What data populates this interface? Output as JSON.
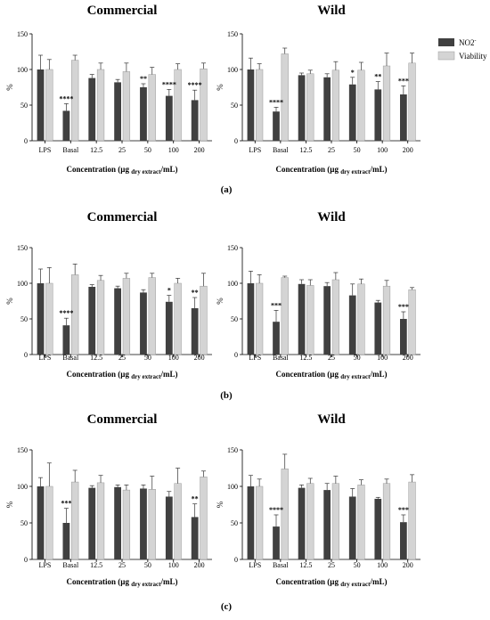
{
  "legend": {
    "items": [
      {
        "label": "NO2",
        "sup": "-",
        "color": "#404040"
      },
      {
        "label": "Viability",
        "color": "#d4d4d4"
      }
    ]
  },
  "panel_labels": [
    "(a)",
    "(b)",
    "(c)"
  ],
  "chart_data": [
    {
      "type": "bar",
      "panel": "(a)",
      "title": "Commercial",
      "ylabel": "%",
      "xlabel_main": "Concentration (µg ",
      "xlabel_sub": "dry extract",
      "xlabel_end": "/mL)",
      "ylim": [
        0,
        150
      ],
      "yticks": [
        "0",
        "50",
        "100",
        "150"
      ],
      "categories": [
        "LPS",
        "Basal",
        "12.5",
        "25",
        "50",
        "100",
        "200"
      ],
      "series": [
        {
          "name": "NO2-",
          "values": [
            100,
            42,
            88,
            82,
            75,
            63,
            57
          ],
          "errors": [
            20,
            10,
            5,
            4,
            5,
            9,
            14
          ]
        },
        {
          "name": "Viability",
          "values": [
            100,
            113,
            100,
            97,
            93,
            100,
            101
          ],
          "errors": [
            14,
            7,
            9,
            12,
            10,
            8,
            8
          ]
        }
      ],
      "annotations": [
        "",
        "****",
        "",
        "",
        "**",
        "****",
        "****"
      ]
    },
    {
      "type": "bar",
      "panel": "(a)",
      "title": "Wild",
      "ylabel": "%",
      "xlabel_main": "Concentration (µg ",
      "xlabel_sub": "dry extract",
      "xlabel_end": "/mL)",
      "ylim": [
        0,
        150
      ],
      "yticks": [
        "0",
        "50",
        "100",
        "150"
      ],
      "categories": [
        "LPS",
        "Basal",
        "12.5",
        "25",
        "50",
        "100",
        "200"
      ],
      "series": [
        {
          "name": "NO2-",
          "values": [
            100,
            41,
            92,
            89,
            79,
            72,
            65
          ],
          "errors": [
            16,
            6,
            3,
            5,
            10,
            11,
            12
          ]
        },
        {
          "name": "Viability",
          "values": [
            100,
            122,
            94,
            99,
            99,
            105,
            109
          ],
          "errors": [
            8,
            8,
            5,
            12,
            11,
            18,
            14
          ]
        }
      ],
      "annotations": [
        "",
        "****",
        "",
        "",
        "*",
        "**",
        "***"
      ]
    },
    {
      "type": "bar",
      "panel": "(b)",
      "title": "Commercial",
      "ylabel": "%",
      "xlabel_main": "Concentration (µg ",
      "xlabel_sub": "dry extract",
      "xlabel_end": "/mL)",
      "ylim": [
        0,
        150
      ],
      "yticks": [
        "0",
        "50",
        "100",
        "150"
      ],
      "categories": [
        "LPS",
        "Basal",
        "12.5",
        "25",
        "50",
        "100",
        "200"
      ],
      "series": [
        {
          "name": "NO2-",
          "values": [
            100,
            41,
            95,
            93,
            87,
            74,
            65
          ],
          "errors": [
            20,
            10,
            3,
            3,
            4,
            9,
            15
          ]
        },
        {
          "name": "Viability",
          "values": [
            100,
            112,
            104,
            107,
            108,
            100,
            96
          ],
          "errors": [
            22,
            15,
            7,
            7,
            6,
            7,
            18
          ]
        }
      ],
      "annotations": [
        "",
        "****",
        "",
        "",
        "",
        "*",
        "**"
      ]
    },
    {
      "type": "bar",
      "panel": "(b)",
      "title": "Wild",
      "ylabel": "%",
      "xlabel_main": "Concentration (µg ",
      "xlabel_sub": "dry extract",
      "xlabel_end": "/mL)",
      "ylim": [
        0,
        150
      ],
      "yticks": [
        "0",
        "50",
        "100",
        "150"
      ],
      "categories": [
        "LPS",
        "Basal",
        "12.5",
        "25",
        "50",
        "100",
        "200"
      ],
      "series": [
        {
          "name": "NO2-",
          "values": [
            100,
            46,
            99,
            96,
            83,
            73,
            50
          ],
          "errors": [
            17,
            16,
            6,
            5,
            16,
            3,
            10
          ]
        },
        {
          "name": "Viability",
          "values": [
            100,
            108,
            97,
            105,
            99,
            96,
            91
          ],
          "errors": [
            12,
            2,
            8,
            10,
            7,
            8,
            3
          ]
        }
      ],
      "annotations": [
        "",
        "***",
        "",
        "",
        "",
        "",
        "***"
      ]
    },
    {
      "type": "bar",
      "panel": "(c)",
      "title": "Commercial",
      "ylabel": "%",
      "xlabel_main": "Concentration (µg ",
      "xlabel_sub": "dry extract",
      "xlabel_end": "/mL)",
      "ylim": [
        0,
        150
      ],
      "yticks": [
        "0",
        "50",
        "100",
        "150"
      ],
      "categories": [
        "LPS",
        "Basal",
        "12.5",
        "25",
        "50",
        "100",
        "200"
      ],
      "series": [
        {
          "name": "NO2-",
          "values": [
            100,
            50,
            98,
            99,
            97,
            86,
            58
          ],
          "errors": [
            12,
            20,
            3,
            3,
            5,
            7,
            18
          ]
        },
        {
          "name": "Viability",
          "values": [
            100,
            106,
            105,
            95,
            96,
            104,
            113
          ],
          "errors": [
            32,
            16,
            10,
            7,
            18,
            21,
            8
          ]
        }
      ],
      "annotations": [
        "",
        "***",
        "",
        "",
        "",
        "",
        "**"
      ]
    },
    {
      "type": "bar",
      "panel": "(c)",
      "title": "Wild",
      "ylabel": "%",
      "xlabel_main": "Concentration (µg ",
      "xlabel_sub": "dry extract",
      "xlabel_end": "/mL)",
      "ylim": [
        0,
        150
      ],
      "yticks": [
        "0",
        "50",
        "100",
        "150"
      ],
      "categories": [
        "LPS",
        "Basal",
        "12.5",
        "25",
        "50",
        "100",
        "200"
      ],
      "series": [
        {
          "name": "NO2-",
          "values": [
            100,
            45,
            98,
            95,
            86,
            83,
            51
          ],
          "errors": [
            15,
            16,
            4,
            9,
            11,
            2,
            10
          ]
        },
        {
          "name": "Viability",
          "values": [
            100,
            124,
            104,
            104,
            102,
            104,
            106
          ],
          "errors": [
            10,
            20,
            7,
            10,
            7,
            6,
            10
          ]
        }
      ],
      "annotations": [
        "",
        "****",
        "",
        "",
        "",
        "",
        "***"
      ]
    }
  ]
}
